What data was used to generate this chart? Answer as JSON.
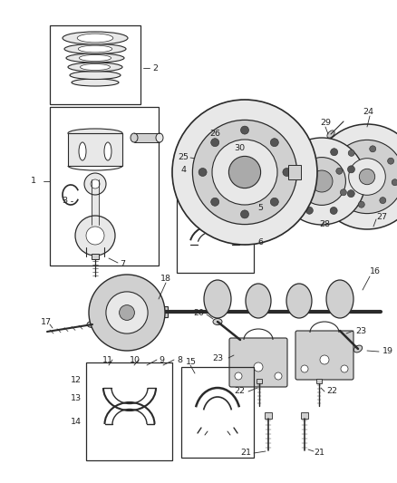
{
  "bg_color": "#ffffff",
  "fig_width": 4.38,
  "fig_height": 5.33,
  "dpi": 100,
  "line_color": "#2a2a2a",
  "fill_light": "#e8e8e8",
  "fill_mid": "#d0d0d0",
  "fill_dark": "#aaaaaa",
  "box_color": "#333333",
  "label_fs": 6.8,
  "label_color": "#222222"
}
